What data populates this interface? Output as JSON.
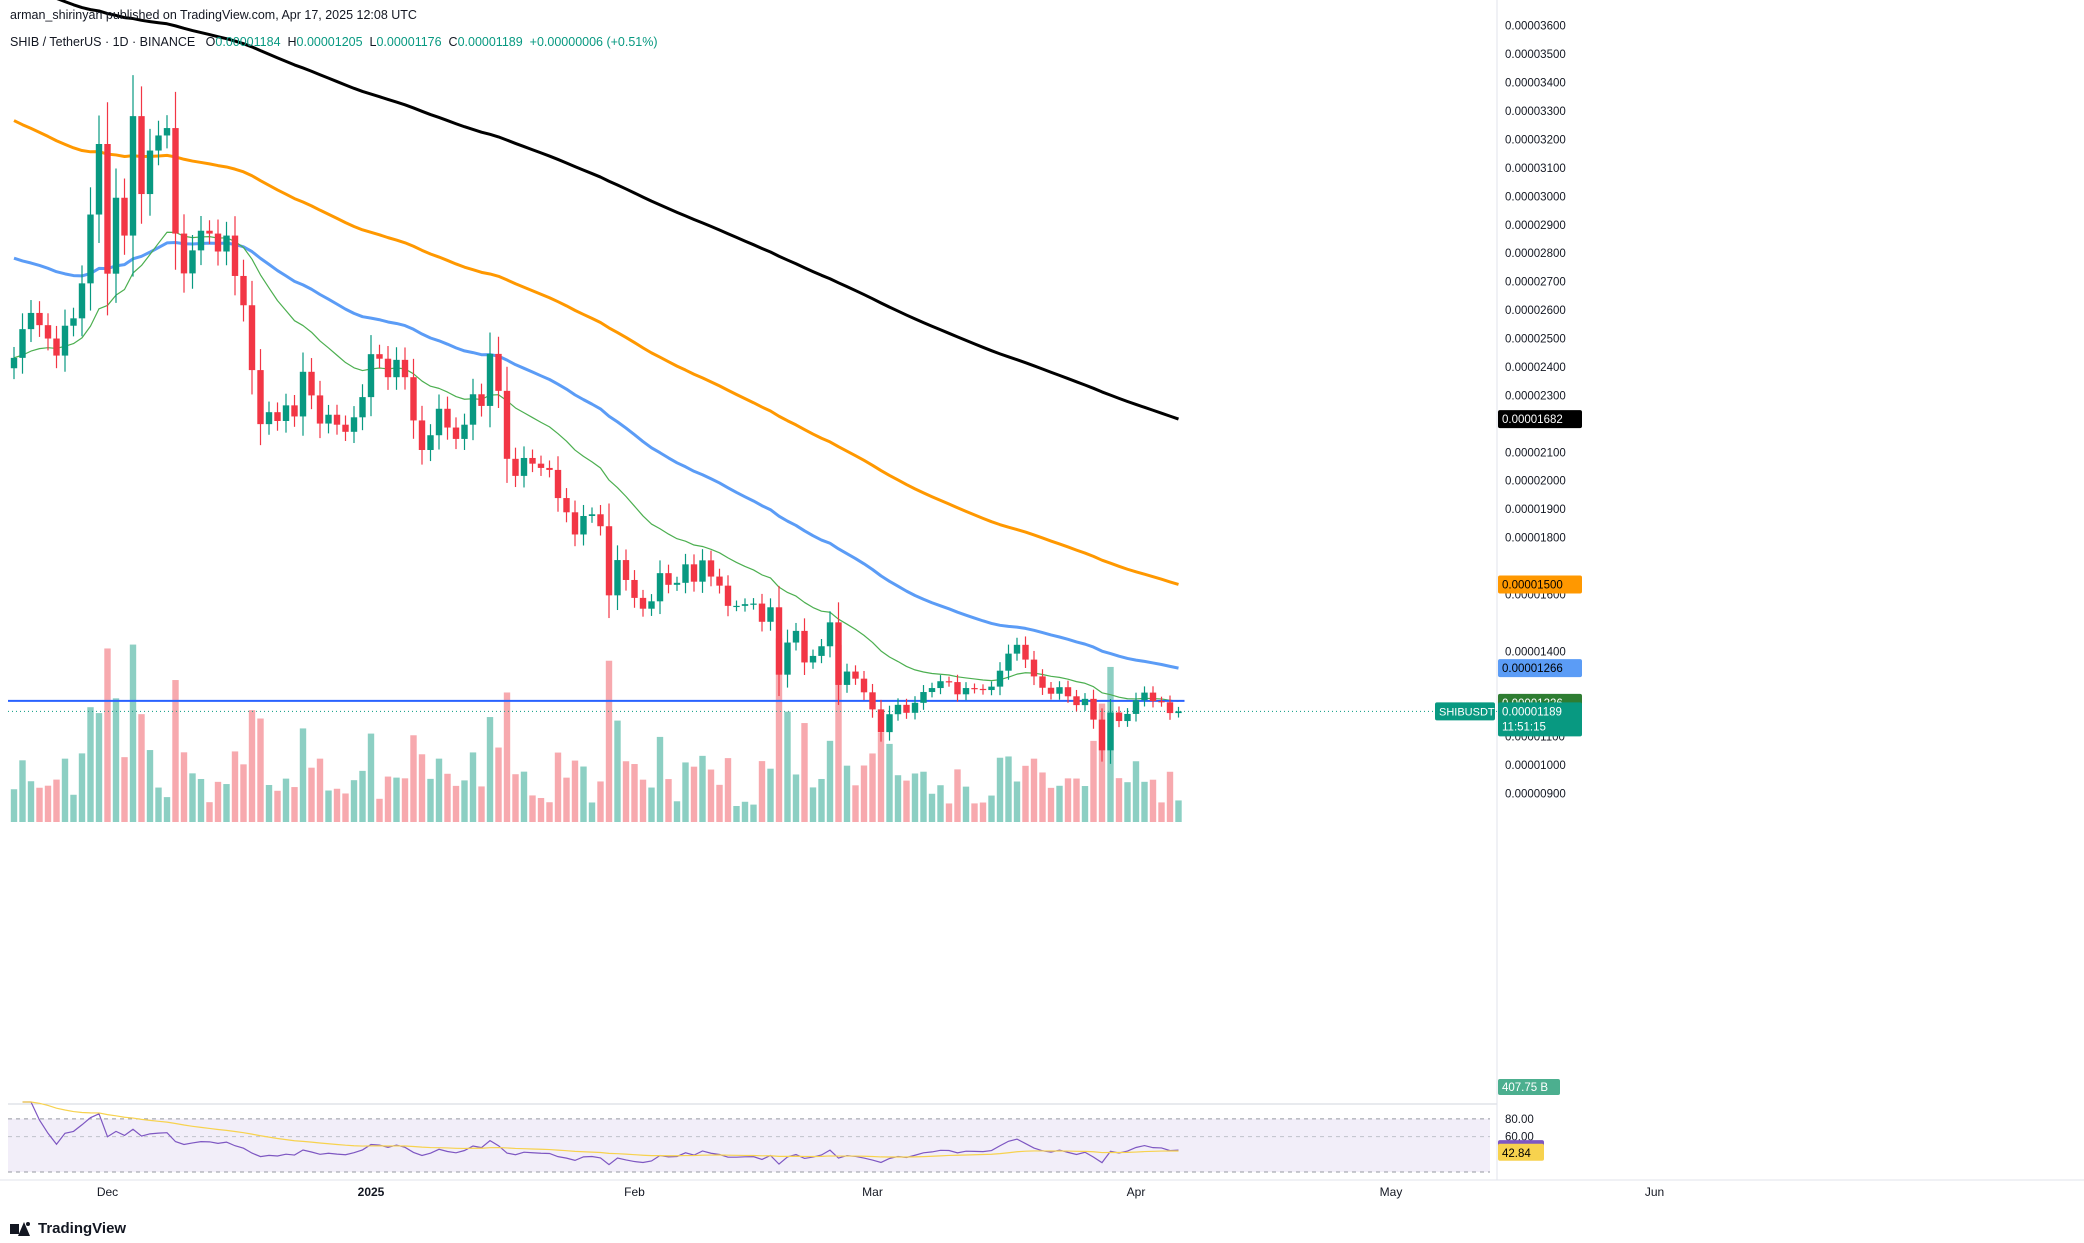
{
  "published": "arman_shirinyan published on TradingView.com, Apr 17, 2025 12:08 UTC",
  "symbol": {
    "name": "SHIB / TetherUS · 1D · BINANCE",
    "o_label": "O",
    "o": "0.00001184",
    "h_label": "H",
    "h": "0.00001205",
    "l_label": "L",
    "l": "0.00001176",
    "c_label": "C",
    "c": "0.00001189",
    "change": "+0.00000006 (+0.51%)"
  },
  "brand": "TradingView",
  "colors": {
    "up": "#089981",
    "down": "#f23645",
    "vol_up": "#8ccfc3",
    "vol_down": "#f7a9ae",
    "ema20": "#4caf50",
    "ema50": "#5b9cf6",
    "ema100": "#ff9800",
    "ema200": "#000000",
    "support_line": "#2962ff",
    "rsi": "#7e57c2",
    "rsi_ma": "#f7d24e",
    "rsi_band": "#ede7f6"
  },
  "chart_data": {
    "type": "candlestick",
    "title": "SHIB / TetherUS · 1D · BINANCE",
    "y_range": [
      8e-06,
      3.62e-05
    ],
    "y_ticks": [
      "0.00003600",
      "0.00003500",
      "0.00003400",
      "0.00003300",
      "0.00003200",
      "0.00003100",
      "0.00003000",
      "0.00002900",
      "0.00002800",
      "0.00002700",
      "0.00002600",
      "0.00002500",
      "0.00002400",
      "0.00002300",
      "0.00002200",
      "0.00002100",
      "0.00002000",
      "0.00001900",
      "0.00001800",
      "0.00001600",
      "0.00001400",
      "0.00001100",
      "0.00001000",
      "0.00000900"
    ],
    "y_tick_values": [
      3.6e-05,
      3.5e-05,
      3.4e-05,
      3.3e-05,
      3.2e-05,
      3.1e-05,
      3e-05,
      2.9e-05,
      2.8e-05,
      2.7e-05,
      2.6e-05,
      2.5e-05,
      2.4e-05,
      2.3e-05,
      2.2e-05,
      2.1e-05,
      2e-05,
      1.9e-05,
      1.8e-05,
      1.6e-05,
      1.4e-05,
      1.1e-05,
      1e-05,
      9e-06
    ],
    "x_labels": [
      "Dec",
      "2025",
      "Feb",
      "Mar",
      "Apr",
      "May",
      "Jun"
    ],
    "x_label_dates": [
      "2024-12-01",
      "2025-01-01",
      "2025-02-01",
      "2025-03-01",
      "2025-04-01",
      "2025-05-01",
      "2025-06-01"
    ],
    "start_date": "2024-11-20",
    "closes": [
      2.432e-05,
      2.533e-05,
      2.59e-05,
      2.547e-05,
      2.5e-05,
      2.44e-05,
      2.545e-05,
      2.571e-05,
      2.694e-05,
      2.936e-05,
      3.184e-05,
      2.728e-05,
      2.995e-05,
      2.862e-05,
      3.282e-05,
      3.008e-05,
      3.161e-05,
      3.214e-05,
      3.24e-05,
      2.869e-05,
      2.729e-05,
      2.81e-05,
      2.879e-05,
      2.869e-05,
      2.806e-05,
      2.862e-05,
      2.72e-05,
      2.617e-05,
      2.389e-05,
      2.199e-05,
      2.241e-05,
      2.21e-05,
      2.265e-05,
      2.226e-05,
      2.383e-05,
      2.3e-05,
      2.201e-05,
      2.232e-05,
      2.197e-05,
      2.172e-05,
      2.223e-05,
      2.294e-05,
      2.445e-05,
      2.429e-05,
      2.364e-05,
      2.425e-05,
      2.364e-05,
      2.212e-05,
      2.108e-05,
      2.16e-05,
      2.253e-05,
      2.187e-05,
      2.147e-05,
      2.197e-05,
      2.304e-05,
      2.263e-05,
      2.446e-05,
      2.316e-05,
      2.077e-05,
      2.017e-05,
      2.08e-05,
      2.06e-05,
      2.045e-05,
      2.038e-05,
      1.939e-05,
      1.889e-05,
      1.811e-05,
      1.876e-05,
      1.882e-05,
      1.84e-05,
      1.597e-05,
      1.721e-05,
      1.651e-05,
      1.588e-05,
      1.55e-05,
      1.576e-05,
      1.675e-05,
      1.634e-05,
      1.641e-05,
      1.706e-05,
      1.645e-05,
      1.72e-05,
      1.663e-05,
      1.631e-05,
      1.56e-05,
      1.56e-05,
      1.566e-05,
      1.568e-05,
      1.504e-05,
      1.555e-05,
      1.318e-05,
      1.431e-05,
      1.472e-05,
      1.361e-05,
      1.384e-05,
      1.418e-05,
      1.502e-05,
      1.282e-05,
      1.329e-05,
      1.304e-05,
      1.256e-05,
      1.196e-05,
      1.116e-05,
      1.179e-05,
      1.212e-05,
      1.184e-05,
      1.219e-05,
      1.257e-05,
      1.271e-05,
      1.295e-05,
      1.292e-05,
      1.249e-05,
      1.271e-05,
      1.268e-05,
      1.264e-05,
      1.276e-05,
      1.332e-05,
      1.392e-05,
      1.423e-05,
      1.371e-05,
      1.312e-05,
      1.272e-05,
      1.251e-05,
      1.274e-05,
      1.242e-05,
      1.211e-05,
      1.233e-05,
      1.16e-05,
      1.052e-05,
      1.185e-05,
      1.155e-05,
      1.18e-05,
      1.228e-05,
      1.255e-05,
      1.225e-05,
      1.221e-05,
      1.183e-05,
      1.189e-05
    ],
    "support_level": 1.226e-05,
    "price_labels": {
      "ema200": "0.00001682",
      "ema100": "0.00001500",
      "ema50": "0.00001266",
      "support": "0.00001226",
      "last": "0.00001189",
      "symbol_tag": "SHIBUSDT",
      "countdown": "11:51:15"
    },
    "volume_label": "407.75 B",
    "rsi": {
      "ticks": [
        "80.00",
        "60.00"
      ],
      "tick_values": [
        80,
        60
      ],
      "value": "45.86",
      "ma_value": "42.84"
    }
  }
}
